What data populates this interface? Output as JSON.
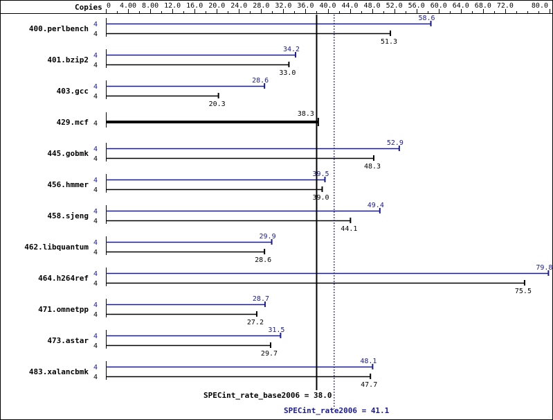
{
  "chart_data": {
    "type": "bar",
    "orientation": "horizontal",
    "axis_title": "Copies",
    "xlim": [
      0,
      80
    ],
    "ticks": [
      "0",
      "4.00",
      "8.00",
      "12.0",
      "16.0",
      "20.0",
      "24.0",
      "28.0",
      "32.0",
      "36.0",
      "40.0",
      "44.0",
      "48.0",
      "52.0",
      "56.0",
      "60.0",
      "64.0",
      "68.0",
      "72.0",
      "80.0"
    ],
    "tick_values": [
      0,
      4,
      8,
      12,
      16,
      20,
      24,
      28,
      32,
      36,
      40,
      44,
      48,
      52,
      56,
      60,
      64,
      68,
      72,
      80
    ],
    "colors": {
      "peak": "#191996",
      "base": "#000000"
    },
    "benchmarks": [
      {
        "name": "400.perlbench",
        "peak_copies": "4",
        "peak": 58.6,
        "peak_label": "58.6",
        "base_copies": "4",
        "base": 51.3,
        "base_label": "51.3"
      },
      {
        "name": "401.bzip2",
        "peak_copies": "4",
        "peak": 34.2,
        "peak_label": "34.2",
        "base_copies": "4",
        "base": 33.0,
        "base_label": "33.0"
      },
      {
        "name": "403.gcc",
        "peak_copies": "4",
        "peak": 28.6,
        "peak_label": "28.6",
        "base_copies": "4",
        "base": 20.3,
        "base_label": "20.3"
      },
      {
        "name": "429.mcf",
        "single": true,
        "base_copies": "4",
        "base": 38.3,
        "base_label": "38.3"
      },
      {
        "name": "445.gobmk",
        "peak_copies": "4",
        "peak": 52.9,
        "peak_label": "52.9",
        "base_copies": "4",
        "base": 48.3,
        "base_label": "48.3"
      },
      {
        "name": "456.hmmer",
        "peak_copies": "4",
        "peak": 39.5,
        "peak_label": "39.5",
        "base_copies": "4",
        "base": 39.0,
        "base_label": "39.0"
      },
      {
        "name": "458.sjeng",
        "peak_copies": "4",
        "peak": 49.4,
        "peak_label": "49.4",
        "base_copies": "4",
        "base": 44.1,
        "base_label": "44.1"
      },
      {
        "name": "462.libquantum",
        "peak_copies": "4",
        "peak": 29.9,
        "peak_label": "29.9",
        "base_copies": "4",
        "base": 28.6,
        "base_label": "28.6"
      },
      {
        "name": "464.h264ref",
        "peak_copies": "4",
        "peak": 79.8,
        "peak_label": "79.8",
        "base_copies": "4",
        "base": 75.5,
        "base_label": "75.5"
      },
      {
        "name": "471.omnetpp",
        "peak_copies": "4",
        "peak": 28.7,
        "peak_label": "28.7",
        "base_copies": "4",
        "base": 27.2,
        "base_label": "27.2"
      },
      {
        "name": "473.astar",
        "peak_copies": "4",
        "peak": 31.5,
        "peak_label": "31.5",
        "base_copies": "4",
        "base": 29.7,
        "base_label": "29.7"
      },
      {
        "name": "483.xalancbmk",
        "peak_copies": "4",
        "peak": 48.1,
        "peak_label": "48.1",
        "base_copies": "4",
        "base": 47.7,
        "base_label": "47.7"
      }
    ],
    "base_summary": {
      "label": "SPECint_rate_base2006 = 38.0",
      "value": 38.0
    },
    "peak_summary": {
      "label": "SPECint_rate2006 = 41.1",
      "value": 41.1
    }
  }
}
